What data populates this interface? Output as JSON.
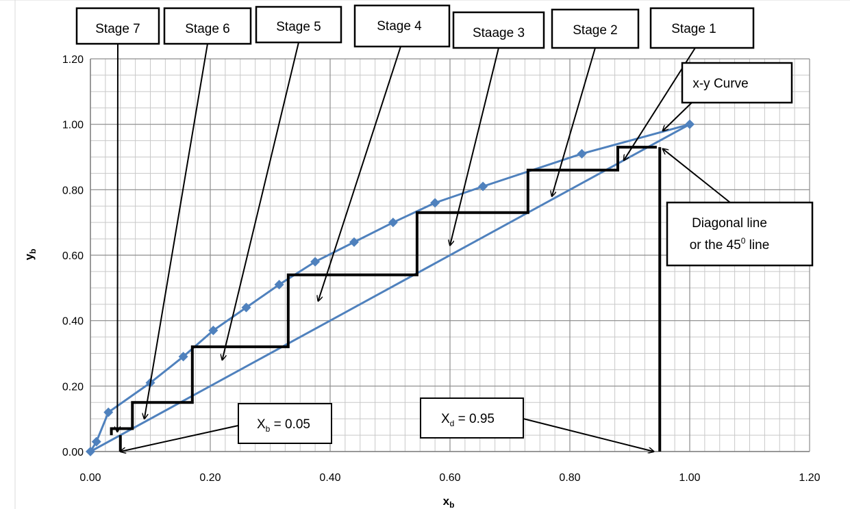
{
  "chart_data": {
    "type": "scatter",
    "xlabel": "x",
    "xlabel_sub": "b",
    "ylabel": "y",
    "ylabel_sub": "b",
    "xlim": [
      0,
      1.2
    ],
    "ylim": [
      0,
      1.2
    ],
    "x_ticks": [
      "0.00",
      "0.20",
      "0.40",
      "0.60",
      "0.80",
      "1.00",
      "1.20"
    ],
    "y_ticks": [
      "0.00",
      "0.20",
      "0.40",
      "0.60",
      "0.80",
      "1.00",
      "1.20"
    ],
    "grid": true,
    "series": [
      {
        "name": "x-y Curve",
        "color": "#4f81bd",
        "marker": "diamond",
        "x": [
          0.0,
          0.01,
          0.03,
          0.1,
          0.155,
          0.205,
          0.26,
          0.315,
          0.375,
          0.44,
          0.505,
          0.575,
          0.655,
          0.82,
          1.0
        ],
        "y": [
          0.0,
          0.03,
          0.12,
          0.21,
          0.29,
          0.37,
          0.44,
          0.51,
          0.58,
          0.64,
          0.7,
          0.76,
          0.81,
          0.91,
          1.0
        ]
      },
      {
        "name": "Diagonal line",
        "color": "#4f81bd",
        "x": [
          0.0,
          1.0
        ],
        "y": [
          0.0,
          1.0
        ]
      }
    ],
    "stage_steps": {
      "color": "#000000",
      "x": [
        0.945,
        0.88,
        0.88,
        0.73,
        0.73,
        0.545,
        0.545,
        0.33,
        0.33,
        0.17,
        0.17,
        0.07,
        0.07,
        0.035,
        0.035
      ],
      "y": [
        0.93,
        0.93,
        0.86,
        0.86,
        0.73,
        0.73,
        0.54,
        0.54,
        0.32,
        0.32,
        0.15,
        0.15,
        0.07,
        0.07,
        0.05
      ]
    },
    "drop_lines": [
      {
        "x": 0.95,
        "y_top": 0.93
      },
      {
        "x": 0.05,
        "y_top": 0.05
      }
    ],
    "annotations": [
      {
        "id": "stage-7",
        "text": "Stage 7",
        "target": [
          0.045,
          0.06
        ]
      },
      {
        "id": "stage-6",
        "text": "Stage 6",
        "target": [
          0.09,
          0.1
        ]
      },
      {
        "id": "stage-5",
        "text": "Stage 5",
        "target": [
          0.22,
          0.28
        ]
      },
      {
        "id": "stage-4",
        "text": "Stage 4",
        "target": [
          0.38,
          0.46
        ]
      },
      {
        "id": "stage-3",
        "text": "Staage 3",
        "target": [
          0.6,
          0.63
        ]
      },
      {
        "id": "stage-2",
        "text": "Stage 2",
        "target": [
          0.77,
          0.78
        ]
      },
      {
        "id": "stage-1",
        "text": "Stage 1",
        "target": [
          0.89,
          0.89
        ]
      },
      {
        "id": "xy-curve",
        "text": "x-y Curve",
        "target": [
          0.955,
          0.98
        ]
      },
      {
        "id": "diagonal",
        "text": "Diagonal line",
        "text2": "or the 45",
        "text2_sup": "0",
        "text2_end": "  line",
        "target": [
          0.955,
          0.925
        ]
      },
      {
        "id": "xb",
        "text": "X",
        "sub": "b",
        "text_end": " = 0.05",
        "target": [
          0.05,
          0.0
        ]
      },
      {
        "id": "xd",
        "text": "X",
        "sub": "d",
        "text_end": " = 0.95",
        "target": [
          0.94,
          0.0
        ]
      }
    ]
  }
}
